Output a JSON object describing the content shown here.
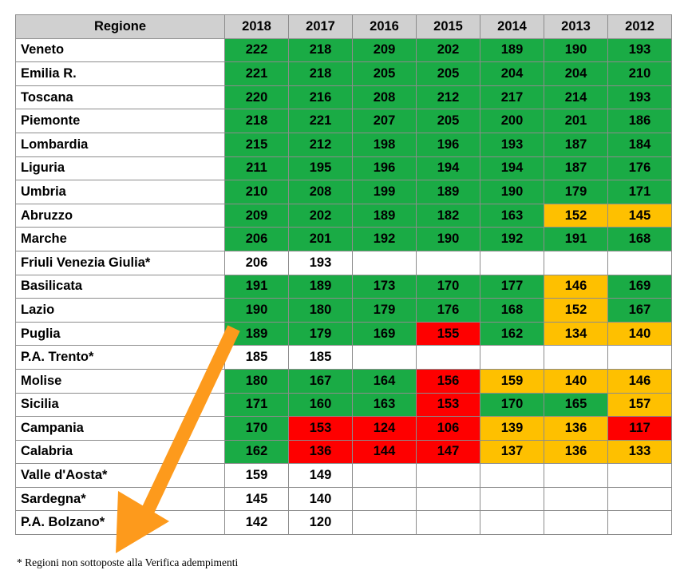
{
  "colors": {
    "green": "#1aab45",
    "yellow": "#fec000",
    "red": "#fe0000",
    "white": "#ffffff",
    "header": "#d0d0d0",
    "arrow": "#fd9a1c"
  },
  "table": {
    "header": [
      "Regione",
      "2018",
      "2017",
      "2016",
      "2015",
      "2014",
      "2013",
      "2012"
    ],
    "rows": [
      {
        "region": "Veneto",
        "values": [
          "222",
          "218",
          "209",
          "202",
          "189",
          "190",
          "193"
        ],
        "status": [
          "g",
          "g",
          "g",
          "g",
          "g",
          "g",
          "g"
        ]
      },
      {
        "region": "Emilia R.",
        "values": [
          "221",
          "218",
          "205",
          "205",
          "204",
          "204",
          "210"
        ],
        "status": [
          "g",
          "g",
          "g",
          "g",
          "g",
          "g",
          "g"
        ]
      },
      {
        "region": "Toscana",
        "values": [
          "220",
          "216",
          "208",
          "212",
          "217",
          "214",
          "193"
        ],
        "status": [
          "g",
          "g",
          "g",
          "g",
          "g",
          "g",
          "g"
        ]
      },
      {
        "region": "Piemonte",
        "values": [
          "218",
          "221",
          "207",
          "205",
          "200",
          "201",
          "186"
        ],
        "status": [
          "g",
          "g",
          "g",
          "g",
          "g",
          "g",
          "g"
        ]
      },
      {
        "region": "Lombardia",
        "values": [
          "215",
          "212",
          "198",
          "196",
          "193",
          "187",
          "184"
        ],
        "status": [
          "g",
          "g",
          "g",
          "g",
          "g",
          "g",
          "g"
        ]
      },
      {
        "region": "Liguria",
        "values": [
          "211",
          "195",
          "196",
          "194",
          "194",
          "187",
          "176"
        ],
        "status": [
          "g",
          "g",
          "g",
          "g",
          "g",
          "g",
          "g"
        ]
      },
      {
        "region": "Umbria",
        "values": [
          "210",
          "208",
          "199",
          "189",
          "190",
          "179",
          "171"
        ],
        "status": [
          "g",
          "g",
          "g",
          "g",
          "g",
          "g",
          "g"
        ]
      },
      {
        "region": "Abruzzo",
        "values": [
          "209",
          "202",
          "189",
          "182",
          "163",
          "152",
          "145"
        ],
        "status": [
          "g",
          "g",
          "g",
          "g",
          "g",
          "y",
          "y"
        ]
      },
      {
        "region": "Marche",
        "values": [
          "206",
          "201",
          "192",
          "190",
          "192",
          "191",
          "168"
        ],
        "status": [
          "g",
          "g",
          "g",
          "g",
          "g",
          "g",
          "g"
        ]
      },
      {
        "region": "Friuli Venezia Giulia*",
        "values": [
          "206",
          "193",
          "",
          "",
          "",
          "",
          ""
        ],
        "status": [
          "w",
          "w",
          "w",
          "w",
          "w",
          "w",
          "w"
        ]
      },
      {
        "region": "Basilicata",
        "values": [
          "191",
          "189",
          "173",
          "170",
          "177",
          "146",
          "169"
        ],
        "status": [
          "g",
          "g",
          "g",
          "g",
          "g",
          "y",
          "g"
        ]
      },
      {
        "region": "Lazio",
        "values": [
          "190",
          "180",
          "179",
          "176",
          "168",
          "152",
          "167"
        ],
        "status": [
          "g",
          "g",
          "g",
          "g",
          "g",
          "y",
          "g"
        ]
      },
      {
        "region": "Puglia",
        "values": [
          "189",
          "179",
          "169",
          "155",
          "162",
          "134",
          "140"
        ],
        "status": [
          "g",
          "g",
          "g",
          "r",
          "g",
          "y",
          "y"
        ]
      },
      {
        "region": "P.A. Trento*",
        "values": [
          "185",
          "185",
          "",
          "",
          "",
          "",
          ""
        ],
        "status": [
          "w",
          "w",
          "w",
          "w",
          "w",
          "w",
          "w"
        ]
      },
      {
        "region": "Molise",
        "values": [
          "180",
          "167",
          "164",
          "156",
          "159",
          "140",
          "146"
        ],
        "status": [
          "g",
          "g",
          "g",
          "r",
          "y",
          "y",
          "y"
        ]
      },
      {
        "region": "Sicilia",
        "values": [
          "171",
          "160",
          "163",
          "153",
          "170",
          "165",
          "157"
        ],
        "status": [
          "g",
          "g",
          "g",
          "r",
          "g",
          "g",
          "y"
        ]
      },
      {
        "region": "Campania",
        "values": [
          "170",
          "153",
          "124",
          "106",
          "139",
          "136",
          "117"
        ],
        "status": [
          "g",
          "r",
          "r",
          "r",
          "y",
          "y",
          "r"
        ]
      },
      {
        "region": "Calabria",
        "values": [
          "162",
          "136",
          "144",
          "147",
          "137",
          "136",
          "133"
        ],
        "status": [
          "g",
          "r",
          "r",
          "r",
          "y",
          "y",
          "y"
        ]
      },
      {
        "region": "Valle d'Aosta*",
        "values": [
          "159",
          "149",
          "",
          "",
          "",
          "",
          ""
        ],
        "status": [
          "w",
          "w",
          "w",
          "w",
          "w",
          "w",
          "w"
        ]
      },
      {
        "region": "Sardegna*",
        "values": [
          "145",
          "140",
          "",
          "",
          "",
          "",
          ""
        ],
        "status": [
          "w",
          "w",
          "w",
          "w",
          "w",
          "w",
          "w"
        ]
      },
      {
        "region": "P.A. Bolzano*",
        "values": [
          "142",
          "120",
          "",
          "",
          "",
          "",
          ""
        ],
        "status": [
          "w",
          "w",
          "w",
          "w",
          "w",
          "w",
          "w"
        ]
      }
    ]
  },
  "footnote": "* Regioni non sottoposte alla Verifica adempimenti",
  "overlay": {
    "icon": "orange-arrow-icon"
  }
}
